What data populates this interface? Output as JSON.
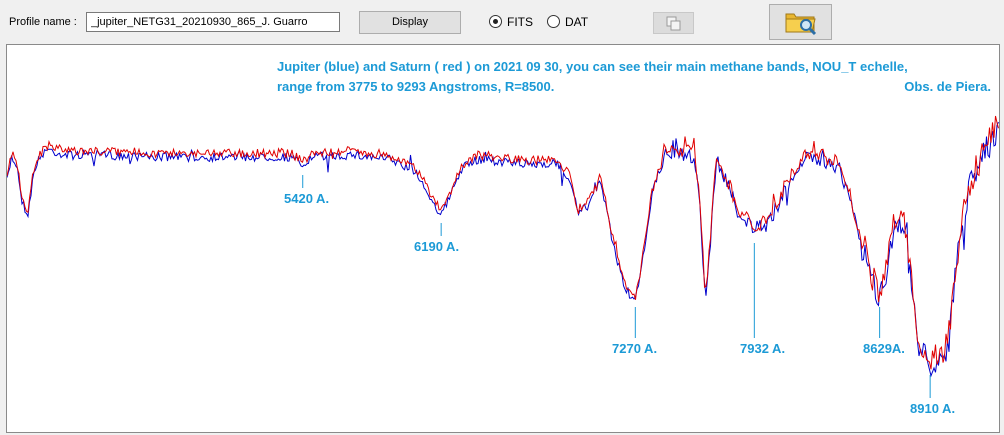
{
  "toolbar": {
    "profile_label": "Profile name :",
    "profile_value": "_jupiter_NETG31_20210930_865_J. Guarro",
    "display_label": "Display",
    "fits_label": "FITS",
    "dat_label": "DAT",
    "selected_format": "FITS",
    "copy_icon": "copy-icon",
    "open_icon": "folder-search-icon"
  },
  "plot": {
    "title_line1": "Jupiter (blue) and Saturn ( red ) on 2021 09 30, you can see their main methane bands, NOU_T echelle,",
    "title_line2": "range from 3775 to 9293 Angstroms, R=8500.",
    "observatory": "Obs. de Piera.",
    "colors": {
      "jupiter": "#0000cc",
      "saturn": "#e00000",
      "annotation": "#1c9ad6"
    },
    "band_labels": [
      "5420 A.",
      "6190 A.",
      "7270 A.",
      "7932 A.",
      "8629A.",
      "8910 A."
    ]
  },
  "chart_data": {
    "type": "line",
    "x_range": [
      3775,
      9293
    ],
    "x_unit": "Angstroms",
    "series": [
      {
        "name": "Jupiter (blue)",
        "color": "#0000cc"
      },
      {
        "name": "Saturn ( red )",
        "color": "#e00000"
      }
    ],
    "annotations": [
      {
        "label": "5420 A.",
        "x": 5420
      },
      {
        "label": "6190 A.",
        "x": 6190
      },
      {
        "label": "7270 A.",
        "x": 7270
      },
      {
        "label": "7932 A.",
        "x": 7932
      },
      {
        "label": "8629A.",
        "x": 8629
      },
      {
        "label": "8910 A.",
        "x": 8910
      }
    ]
  }
}
